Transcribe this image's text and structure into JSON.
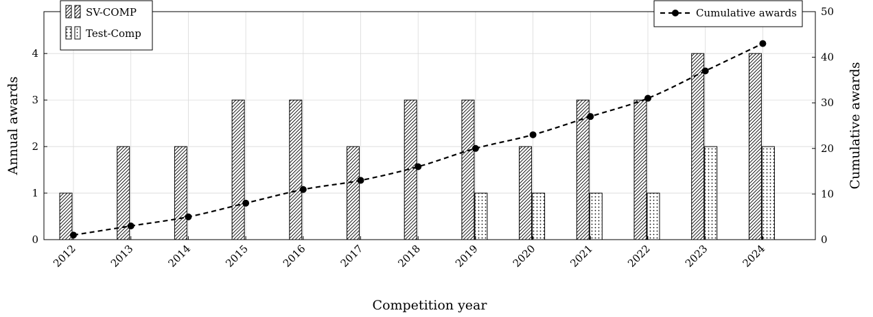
{
  "chart_data": {
    "type": "bar",
    "categories": [
      "2012",
      "2013",
      "2014",
      "2015",
      "2016",
      "2017",
      "2018",
      "2019",
      "2020",
      "2021",
      "2022",
      "2023",
      "2024"
    ],
    "series": [
      {
        "name": "SV-COMP",
        "type": "bar",
        "axis": "left",
        "pattern": "hatch",
        "values": [
          1,
          2,
          2,
          3,
          3,
          2,
          3,
          3,
          2,
          3,
          3,
          4,
          4
        ]
      },
      {
        "name": "Test-Comp",
        "type": "bar",
        "axis": "left",
        "pattern": "dots",
        "values": [
          0,
          0,
          0,
          0,
          0,
          0,
          0,
          1,
          1,
          1,
          1,
          2,
          2
        ]
      },
      {
        "name": "Cumulative awards",
        "type": "line",
        "axis": "right",
        "style": "dashed-with-markers",
        "values": [
          1,
          3,
          5,
          8,
          11,
          13,
          16,
          20,
          23,
          27,
          31,
          37,
          43
        ]
      }
    ],
    "xlabel": "Competition year",
    "ylabel": "Annual awards",
    "y2label": "Cumulative awards",
    "ylim": [
      0,
      4.9
    ],
    "y2lim": [
      0,
      50
    ],
    "yticks": [
      0,
      1,
      2,
      3,
      4
    ],
    "y2ticks": [
      0,
      10,
      20,
      30,
      40,
      50
    ],
    "grid": true,
    "legend_left_position": "top-left",
    "legend_right_position": "top-right"
  }
}
